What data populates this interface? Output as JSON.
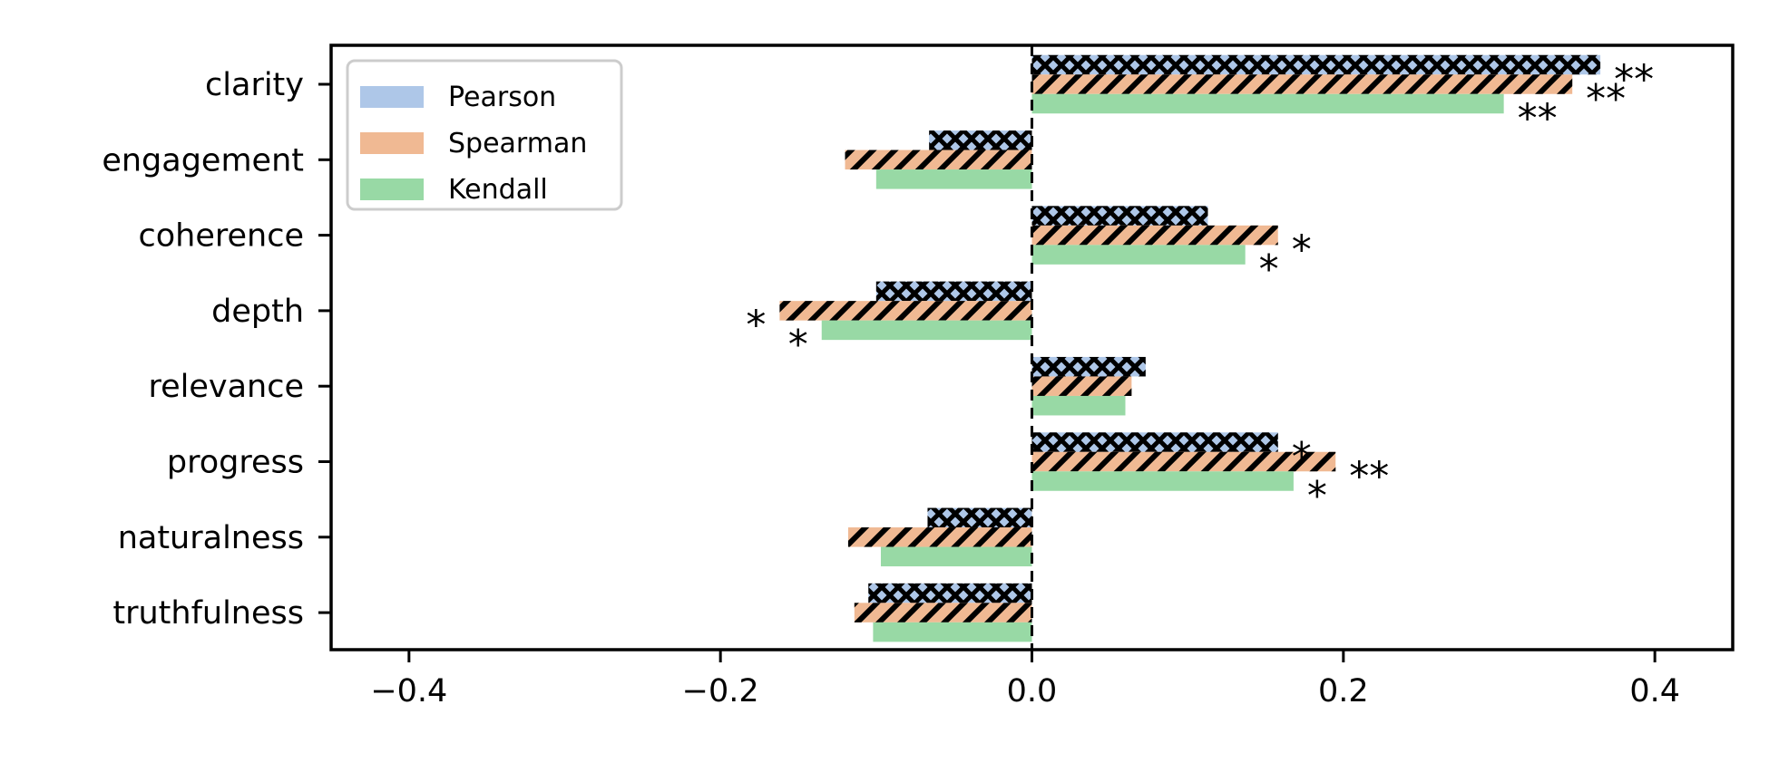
{
  "chart_data": {
    "type": "bar",
    "orientation": "horizontal",
    "categories": [
      "clarity",
      "engagement",
      "coherence",
      "depth",
      "relevance",
      "progress",
      "naturalness",
      "truthfulness"
    ],
    "series": [
      {
        "name": "Pearson",
        "color": "#aec7e8",
        "hatch": "cross-diamond",
        "values": [
          0.365,
          -0.066,
          0.113,
          -0.1,
          0.073,
          0.158,
          -0.067,
          -0.105
        ],
        "significance": [
          "**",
          "",
          "",
          "",
          "",
          "*",
          "",
          ""
        ]
      },
      {
        "name": "Spearman",
        "color": "#f0b993",
        "hatch": "diagonal",
        "values": [
          0.347,
          -0.12,
          0.158,
          -0.162,
          0.064,
          0.195,
          -0.118,
          -0.114
        ],
        "significance": [
          "**",
          "",
          "*",
          "*",
          "",
          "**",
          "",
          ""
        ]
      },
      {
        "name": "Kendall",
        "color": "#98d9a5",
        "hatch": "none",
        "values": [
          0.303,
          -0.1,
          0.137,
          -0.135,
          0.06,
          0.168,
          -0.097,
          -0.102
        ],
        "significance": [
          "**",
          "",
          "*",
          "*",
          "",
          "*",
          "",
          ""
        ]
      }
    ],
    "xlim": [
      -0.45,
      0.45
    ],
    "xticks": [
      -0.4,
      -0.2,
      0.0,
      0.2,
      0.4
    ],
    "xtick_labels": [
      "−0.4",
      "−0.2",
      "0.0",
      "0.2",
      "0.4"
    ],
    "title": "",
    "xlabel": "",
    "ylabel": "",
    "zero_line": "dashed",
    "grid": false,
    "legend": "top-left"
  }
}
